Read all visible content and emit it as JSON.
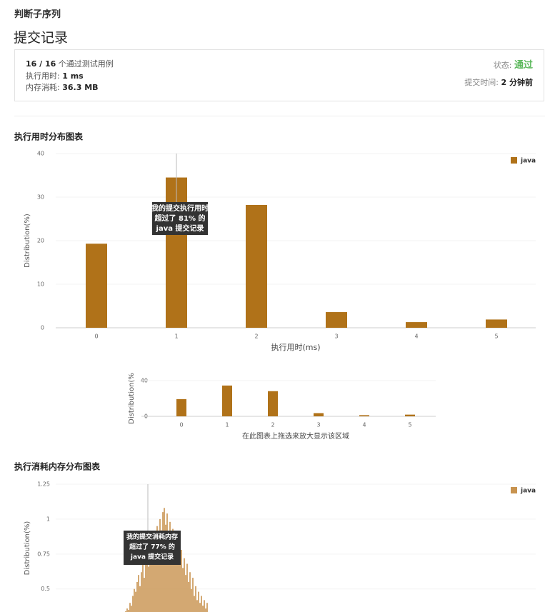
{
  "header": {
    "problem": "判断子序列",
    "title": "提交记录"
  },
  "summary": {
    "passed": "16 / 16",
    "passed_suffix": "个通过测试用例",
    "runtime_label": "执行用时:",
    "runtime": "1 ms",
    "memory_label": "内存消耗:",
    "memory": "36.3 MB",
    "status_label": "状态:",
    "status": "通过",
    "time_label": "提交时间:",
    "time": "2 分钟前"
  },
  "chart_data": [
    {
      "type": "bar",
      "title": "执行用时分布图表",
      "y_label": "Distribution(%)",
      "x_label": "执行用时(ms)",
      "categories": [
        "0",
        "1",
        "2",
        "3",
        "4",
        "5"
      ],
      "series": [
        {
          "name": "java",
          "color": "#b07219",
          "values": [
            19.3,
            34.5,
            28.2,
            3.6,
            1.3,
            1.9
          ]
        }
      ],
      "ylim": [
        0,
        40
      ],
      "yticks": [
        0,
        10,
        20,
        30,
        40
      ],
      "grid": true,
      "legend": "top-right",
      "annotation": [
        "我的提交执行用时",
        "超过了 81% 的",
        "java 提交记录"
      ]
    },
    {
      "type": "bar",
      "y_label": "Distribution(%",
      "caption": "在此图表上拖选来放大显示该区域",
      "categories": [
        "0",
        "1",
        "2",
        "3",
        "4",
        "5"
      ],
      "color": "#b07219",
      "values": [
        19.3,
        34.5,
        28.2,
        3.6,
        1.3,
        1.9
      ],
      "ylim": [
        0,
        40
      ],
      "yticks": [
        0,
        40
      ],
      "grid": true
    },
    {
      "type": "bar",
      "title": "执行消耗内存分布图表",
      "y_label": "Distribution(%)",
      "categories": [
        null,
        null,
        null,
        null,
        null,
        null,
        null,
        null,
        null,
        null,
        null,
        null,
        null,
        null,
        null,
        null,
        null,
        null,
        null,
        null,
        null,
        null,
        null,
        null,
        null,
        null,
        null,
        null,
        null,
        null,
        null,
        null,
        null,
        null,
        null,
        null,
        null,
        null,
        null,
        null,
        null,
        null,
        null,
        null,
        null,
        null,
        null,
        null,
        null,
        null,
        null,
        null,
        null,
        null,
        null,
        null,
        null,
        null
      ],
      "series": [
        {
          "name": "java",
          "color": "#c8934f",
          "values": [
            0.34,
            0.36,
            0.35,
            0.4,
            0.38,
            0.45,
            0.5,
            0.48,
            0.55,
            0.6,
            0.52,
            0.62,
            0.68,
            0.58,
            0.7,
            0.75,
            0.66,
            0.8,
            0.85,
            0.72,
            0.9,
            0.82,
            0.95,
            0.88,
            1.0,
            0.92,
            1.05,
            1.08,
            0.96,
            1.04,
            0.9,
            0.98,
            0.85,
            0.93,
            0.8,
            0.88,
            0.75,
            0.82,
            0.7,
            0.78,
            0.65,
            0.72,
            0.6,
            0.68,
            0.55,
            0.62,
            0.5,
            0.58,
            0.45,
            0.52,
            0.42,
            0.48,
            0.4,
            0.45,
            0.38,
            0.42,
            0.36,
            0.4
          ]
        }
      ],
      "ylim": [
        0.335,
        1.25
      ],
      "yticks": [
        0.5,
        0.75,
        1,
        1.25
      ],
      "grid": true,
      "legend": "top-right",
      "annotation": [
        "我的提交消耗内存",
        "超过了 77% 的",
        "java 提交记录"
      ]
    }
  ]
}
